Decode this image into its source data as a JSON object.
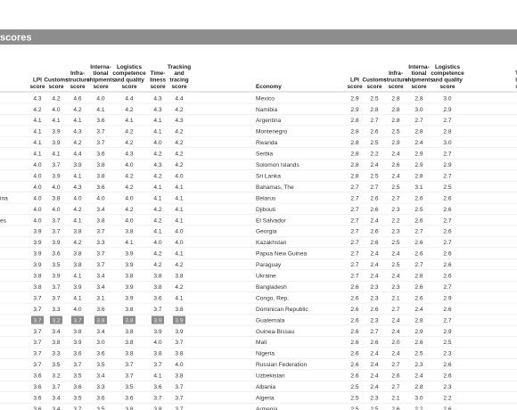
{
  "header": {
    "title": "scores"
  },
  "table": {
    "left_columns": [
      [
        "LPI",
        "score"
      ],
      [
        "Customs",
        "score"
      ],
      [
        "Infra-",
        "structure",
        "score"
      ],
      [
        "Interna-",
        "tional",
        "shipments",
        "score"
      ],
      [
        "Logistics",
        "competence",
        "and quality",
        "score"
      ],
      [
        "Time-",
        "liness",
        "score"
      ],
      [
        "Tracking",
        "and",
        "tracing",
        "score"
      ]
    ],
    "right_economy_header": "Economy",
    "right_columns": [
      [
        "LPI",
        "score"
      ],
      [
        "Customs",
        "score"
      ],
      [
        "Infra-",
        "structure",
        "score"
      ],
      [
        "Interna-",
        "tional",
        "shipments",
        "score"
      ],
      [
        "Logistics",
        "competence",
        "and quality",
        "score"
      ],
      [
        "T",
        "li",
        "s"
      ]
    ],
    "highlight_row": 20,
    "rows": [
      {
        "left": [
          "4.3",
          "4.2",
          "4.6",
          "4.0",
          "4.4",
          "4.3",
          "4.4"
        ],
        "economy": "Mexico",
        "right": [
          "2.9",
          "2.5",
          "2.8",
          "2.8",
          "3.0"
        ]
      },
      {
        "left": [
          "4.2",
          "4.0",
          "4.2",
          "4.1",
          "4.2",
          "4.3",
          "4.2"
        ],
        "economy": "Namibia",
        "right": [
          "2.9",
          "2.8",
          "2.8",
          "3.0",
          "2.9"
        ]
      },
      {
        "left": [
          "4.1",
          "4.1",
          "4.1",
          "3.6",
          "4.1",
          "4.1",
          "4.3"
        ],
        "economy": "Argentina",
        "right": [
          "2.8",
          "2.7",
          "2.8",
          "2.7",
          "2.7"
        ]
      },
      {
        "left": [
          "4.1",
          "3.9",
          "4.3",
          "3.7",
          "4.2",
          "4.1",
          "4.2"
        ],
        "economy": "Montenegro",
        "right": [
          "2.8",
          "2.6",
          "2.5",
          "2.8",
          "2.8"
        ]
      },
      {
        "left": [
          "4.1",
          "3.9",
          "4.2",
          "3.7",
          "4.2",
          "4.0",
          "4.2"
        ],
        "economy": "Rwanda",
        "right": [
          "2.8",
          "2.5",
          "2.9",
          "2.4",
          "3.0"
        ]
      },
      {
        "left": [
          "4.1",
          "4.1",
          "4.4",
          "3.6",
          "4.3",
          "4.2",
          "4.2"
        ],
        "economy": "Serbia",
        "right": [
          "2.8",
          "2.2",
          "2.4",
          "2.9",
          "2.7"
        ]
      },
      {
        "left": [
          "4.0",
          "3.7",
          "3.9",
          "3.8",
          "4.0",
          "4.3",
          "4.2"
        ],
        "economy": "Solomon Islands",
        "right": [
          "2.8",
          "2.4",
          "2.6",
          "2.9",
          "2.9"
        ]
      },
      {
        "left": [
          "4.0",
          "3.9",
          "4.1",
          "3.8",
          "4.2",
          "4.2",
          "4.0"
        ],
        "economy": "Sri Lanka",
        "right": [
          "2.8",
          "2.5",
          "2.4",
          "2.8",
          "2.7"
        ]
      },
      {
        "left": [
          "4.0",
          "4.0",
          "4.3",
          "3.6",
          "4.2",
          "4.1",
          "4.1"
        ],
        "economy": "Bahamas, The",
        "right": [
          "2.7",
          "2.7",
          "2.5",
          "3.1",
          "2.5"
        ]
      },
      {
        "left_economy": "ina",
        "left": [
          "4.0",
          "3.8",
          "4.0",
          "4.0",
          "4.0",
          "4.1",
          "4.1"
        ],
        "economy": "Belarus",
        "right": [
          "2.7",
          "2.6",
          "2.7",
          "2.6",
          "2.6"
        ]
      },
      {
        "left": [
          "4.0",
          "4.0",
          "4.2",
          "3.4",
          "4.2",
          "4.2",
          "4.1"
        ],
        "economy": "Djibouti",
        "right": [
          "2.7",
          "2.6",
          "2.3",
          "2.5",
          "2.6"
        ]
      },
      {
        "left_economy": "es",
        "left": [
          "4.0",
          "3.7",
          "4.1",
          "3.8",
          "4.0",
          "4.2",
          "4.1"
        ],
        "economy": "El Salvador",
        "right": [
          "2.7",
          "2.4",
          "2.2",
          "2.6",
          "2.7"
        ]
      },
      {
        "left": [
          "3.9",
          "3.7",
          "3.8",
          "3.7",
          "3.8",
          "4.1",
          "4.0"
        ],
        "economy": "Georgia",
        "right": [
          "2.7",
          "2.6",
          "2.3",
          "2.7",
          "2.6"
        ]
      },
      {
        "left": [
          "3.9",
          "3.9",
          "4.2",
          "3.3",
          "4.1",
          "4.0",
          "4.0"
        ],
        "economy": "Kazakhstan",
        "right": [
          "2.7",
          "2.6",
          "2.5",
          "2.6",
          "2.7"
        ]
      },
      {
        "left": [
          "3.9",
          "3.6",
          "3.8",
          "3.7",
          "3.9",
          "4.2",
          "4.1"
        ],
        "economy": "Papua New Guinea",
        "right": [
          "2.7",
          "2.4",
          "2.4",
          "2.6",
          "2.6"
        ]
      },
      {
        "left": [
          "3.9",
          "3.5",
          "3.8",
          "3.7",
          "3.9",
          "4.2",
          "4.2"
        ],
        "economy": "Paraguay",
        "right": [
          "2.7",
          "2.4",
          "2.5",
          "2.7",
          "2.6"
        ]
      },
      {
        "left": [
          "3.8",
          "3.9",
          "4.1",
          "3.4",
          "3.8",
          "3.8",
          "3.8"
        ],
        "economy": "Ukraine",
        "right": [
          "2.7",
          "2.4",
          "2.4",
          "2.8",
          "2.6"
        ]
      },
      {
        "left": [
          "3.8",
          "3.7",
          "3.9",
          "3.4",
          "3.9",
          "3.8",
          "4.2"
        ],
        "economy": "Bangladesh",
        "right": [
          "2.6",
          "2.3",
          "2.3",
          "2.6",
          "2.7"
        ]
      },
      {
        "left": [
          "3.7",
          "3.7",
          "4.1",
          "3.1",
          "3.9",
          "3.6",
          "4.1"
        ],
        "economy": "Congo, Rep.",
        "right": [
          "2.6",
          "2.3",
          "2.1",
          "2.6",
          "2.9"
        ]
      },
      {
        "left": [
          "3.7",
          "3.3",
          "4.0",
          "3.6",
          "3.8",
          "3.7",
          "3.8"
        ],
        "economy": "Dominican Republic",
        "right": [
          "2.6",
          "2.6",
          "2.7",
          "2.4",
          "2.6"
        ]
      },
      {
        "left": [
          "3.7",
          "3.2",
          "3.7",
          "3.8",
          "3.8",
          "3.9",
          "3.9"
        ],
        "economy": "Guatemala",
        "right": [
          "2.6",
          "2.3",
          "2.4",
          "2.8",
          "2.7"
        ]
      },
      {
        "left": [
          "3.7",
          "3.4",
          "3.8",
          "3.4",
          "3.8",
          "3.9",
          "3.9"
        ],
        "economy": "Guinea-Bissau",
        "right": [
          "2.6",
          "2.7",
          "2.4",
          "2.9",
          "2.9"
        ]
      },
      {
        "left": [
          "3.7",
          "3.8",
          "3.9",
          "3.0",
          "3.8",
          "4.0",
          "3.7"
        ],
        "economy": "Mali",
        "right": [
          "2.6",
          "2.6",
          "2.0",
          "2.6",
          "2.5"
        ]
      },
      {
        "left": [
          "3.7",
          "3.3",
          "3.6",
          "3.6",
          "3.8",
          "3.8",
          "3.8"
        ],
        "economy": "Nigeria",
        "right": [
          "2.6",
          "2.4",
          "2.4",
          "2.5",
          "2.3"
        ]
      },
      {
        "left": [
          "3.7",
          "3.5",
          "3.7",
          "3.5",
          "3.7",
          "3.7",
          "4.0"
        ],
        "economy": "Russian Federation",
        "right": [
          "2.6",
          "2.4",
          "2.7",
          "2.3",
          "2.6"
        ]
      },
      {
        "left": [
          "3.6",
          "3.2",
          "3.5",
          "3.4",
          "3.7",
          "4.1",
          "3.8"
        ],
        "economy": "Uzbekistan",
        "right": [
          "2.6",
          "2.4",
          "2.6",
          "2.4",
          "2.6"
        ]
      },
      {
        "left": [
          "3.6",
          "3.7",
          "3.6",
          "3.3",
          "3.5",
          "3.6",
          "3.7"
        ],
        "economy": "Albania",
        "right": [
          "2.5",
          "2.4",
          "2.7",
          "2.8",
          "2.3"
        ]
      },
      {
        "left": [
          "3.6",
          "3.4",
          "3.5",
          "3.6",
          "3.6",
          "3.7",
          "3.7"
        ],
        "economy": "Algeria",
        "right": [
          "2.5",
          "2.3",
          "2.1",
          "3.0",
          "2.2"
        ]
      },
      {
        "left": [
          "3.6",
          "3.4",
          "3.7",
          "3.5",
          "3.8",
          "3.8",
          "3.7"
        ],
        "economy": "Armenia",
        "right": [
          "2.5",
          "2.5",
          "2.6",
          "2.2",
          "2.6"
        ]
      }
    ]
  }
}
